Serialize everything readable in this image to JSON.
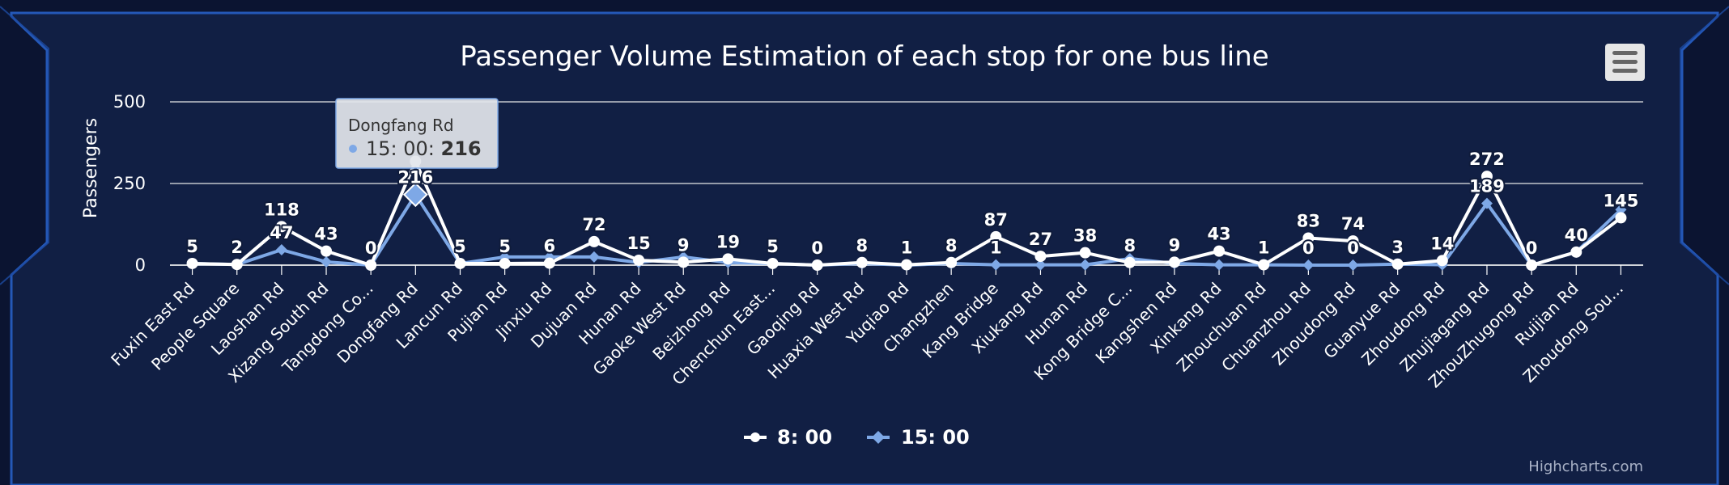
{
  "chart_data": {
    "type": "line",
    "title": "Passenger Volume Estimation of each stop for one bus line",
    "ylabel": "Passengers",
    "xlabel": "",
    "ylim": [
      0,
      500
    ],
    "yticks": [
      0,
      250,
      500
    ],
    "grid": true,
    "legend_position": "bottom-center",
    "categories": [
      "Fuxin East Rd",
      "People Square",
      "Laoshan Rd",
      "Xizang South Rd",
      "Tangdong Co...",
      "Dongfang Rd",
      "Lancun Rd",
      "Pujian Rd",
      "Jinxiu Rd",
      "Dujuan Rd",
      "Hunan Rd",
      "Gaoke West Rd",
      "Beizhong Rd",
      "Chenchun East...",
      "Gaoqing Rd",
      "Huaxia West Rd",
      "Yuqiao Rd",
      "Changzhen",
      "Kang Bridge",
      "Xiukang Rd",
      "Hunan Rd",
      "Kong Bridge C...",
      "Kangshen Rd",
      "Xinkang Rd",
      "Zhouchuan Rd",
      "Chuanzhou Rd",
      "Zhoudong Rd",
      "Guanyue Rd",
      "Zhoudong Rd",
      "Zhujiagang Rd",
      "ZhouZhugong Rd",
      "Ruijian Rd",
      "Zhoudong Sou..."
    ],
    "series": [
      {
        "name": "8: 00",
        "color": "#ffffff",
        "marker": "circle",
        "values": [
          5,
          2,
          118,
          43,
          0,
          318,
          5,
          5,
          6,
          72,
          15,
          9,
          19,
          5,
          0,
          8,
          1,
          8,
          87,
          27,
          38,
          8,
          9,
          43,
          1,
          83,
          74,
          3,
          14,
          272,
          0,
          40,
          145
        ],
        "labels": [
          "5",
          "2",
          "118",
          "43",
          "0",
          "",
          "5",
          "5",
          "6",
          "72",
          "15",
          "9",
          "19",
          "5",
          "0",
          "8",
          "1",
          "8",
          "87",
          "27",
          "38",
          "8",
          "9",
          "43",
          "1",
          "83",
          "74",
          "3",
          "14",
          "272",
          "0",
          "40",
          "145"
        ]
      },
      {
        "name": "15: 00",
        "color": "#7ea8e6",
        "marker": "diamond",
        "values": [
          5,
          2,
          47,
          10,
          0,
          216,
          5,
          25,
          25,
          25,
          8,
          25,
          8,
          5,
          0,
          5,
          0,
          5,
          1,
          1,
          1,
          20,
          5,
          1,
          1,
          0,
          0,
          3,
          1,
          189,
          0,
          40,
          170
        ],
        "labels": [
          "",
          "",
          "47",
          "",
          "",
          "216",
          "",
          "",
          "",
          "",
          "",
          "",
          "",
          "",
          "",
          "",
          "",
          "",
          "1",
          "",
          "",
          "",
          "",
          "",
          "",
          "0",
          "0",
          "",
          "",
          "189",
          "",
          "",
          ""
        ]
      }
    ]
  },
  "tooltip": {
    "header": "Dongfang Rd",
    "series_name": "15: 00",
    "value": "216"
  },
  "credits": "Highcharts.com",
  "colors": {
    "background": "#0b1431",
    "panel": "#12224a",
    "border": "#2a5fc4",
    "grid": "#e6e6e6"
  }
}
